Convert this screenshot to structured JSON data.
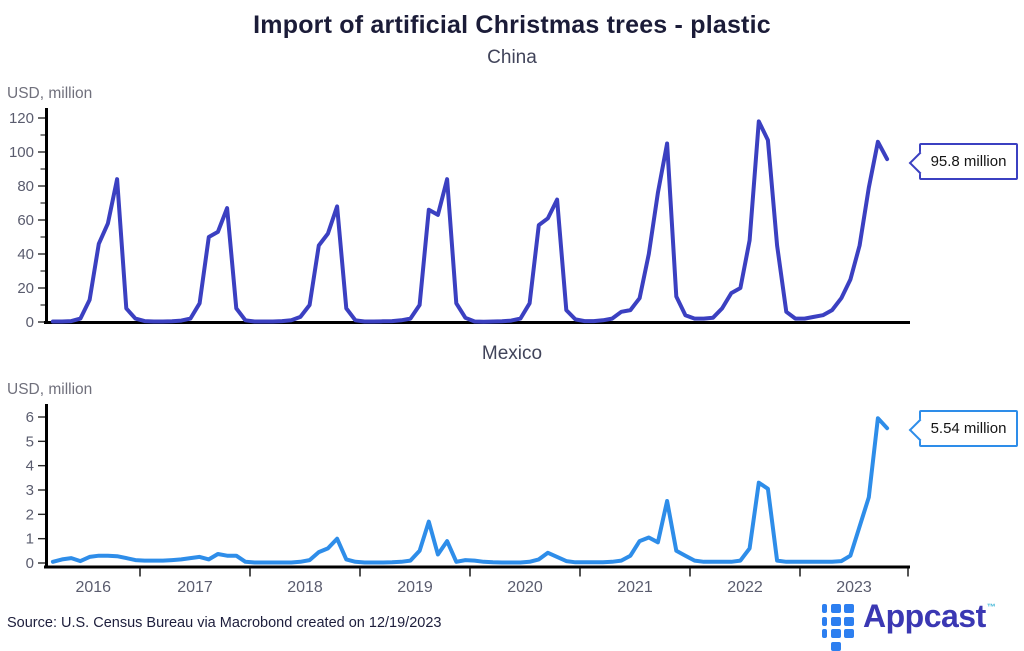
{
  "header": {
    "title": "Import of artificial Christmas trees - plastic"
  },
  "footer": {
    "source": "Source: U.S. Census Bureau via Macrobond created on 12/19/2023"
  },
  "logo": {
    "text": "Appcast",
    "tm": "™"
  },
  "colors": {
    "axis": "#000000",
    "tick_mark": "#2a2a2a",
    "tick_label": "#5a5c6e",
    "year_label": "#5a5c6e",
    "china_line": "#3b40c1",
    "mexico_line": "#2e8de9"
  },
  "x_axis": {
    "years": [
      2016,
      2017,
      2018,
      2019,
      2020,
      2021,
      2022,
      2023
    ]
  },
  "chart_data": [
    {
      "type": "line",
      "title": "China",
      "ylabel": "USD, million",
      "ylim": [
        0,
        120
      ],
      "y_ticks": [
        0,
        20,
        40,
        60,
        80,
        100,
        120
      ],
      "y_minor_tick_step": 10,
      "grid": false,
      "end_label": "95.8 million",
      "line_color": "#3b40c1",
      "series": [
        {
          "name": "China imports, USD million",
          "start": "2016-03",
          "frequency": "monthly",
          "values": [
            0.3,
            0.3,
            0.5,
            2,
            13,
            46,
            58,
            84,
            8,
            2,
            0.5,
            0.3,
            0.3,
            0.4,
            0.8,
            2,
            11,
            50,
            53,
            67,
            8,
            1,
            0.3,
            0.3,
            0.3,
            0.5,
            1,
            3,
            10,
            45,
            52,
            68,
            8,
            1,
            0.3,
            0.3,
            0.4,
            0.5,
            1,
            2,
            10,
            66,
            63,
            84,
            11,
            2.5,
            0.3,
            0.2,
            0.3,
            0.4,
            0.8,
            2,
            11,
            57,
            61,
            72,
            7,
            1.5,
            0.5,
            0.5,
            1,
            2,
            6,
            7,
            14,
            40,
            76,
            105,
            15,
            4,
            2,
            2,
            2.5,
            8,
            17,
            20,
            48,
            118,
            107,
            45,
            6,
            2,
            2,
            3,
            4,
            7,
            14,
            25,
            45,
            79,
            106,
            95.8
          ]
        }
      ]
    },
    {
      "type": "line",
      "title": "Mexico",
      "ylabel": "USD, million",
      "ylim": [
        0,
        6
      ],
      "y_ticks": [
        0,
        1,
        2,
        3,
        4,
        5,
        6
      ],
      "y_minor_tick_step": null,
      "grid": false,
      "end_label": "5.54 million",
      "line_color": "#2e8de9",
      "series": [
        {
          "name": "Mexico imports, USD million",
          "start": "2016-03",
          "frequency": "monthly",
          "values": [
            0.05,
            0.15,
            0.2,
            0.08,
            0.25,
            0.3,
            0.3,
            0.28,
            0.2,
            0.12,
            0.1,
            0.1,
            0.1,
            0.12,
            0.15,
            0.2,
            0.25,
            0.15,
            0.37,
            0.3,
            0.3,
            0.05,
            0.02,
            0.02,
            0.02,
            0.02,
            0.02,
            0.05,
            0.12,
            0.45,
            0.6,
            1.0,
            0.15,
            0.05,
            0.02,
            0.02,
            0.02,
            0.03,
            0.05,
            0.1,
            0.5,
            1.7,
            0.35,
            0.9,
            0.05,
            0.12,
            0.1,
            0.05,
            0.03,
            0.02,
            0.02,
            0.02,
            0.05,
            0.15,
            0.42,
            0.25,
            0.08,
            0.03,
            0.03,
            0.03,
            0.03,
            0.05,
            0.1,
            0.3,
            0.9,
            1.05,
            0.85,
            2.55,
            0.5,
            0.3,
            0.1,
            0.05,
            0.05,
            0.05,
            0.05,
            0.1,
            0.6,
            3.3,
            3.05,
            0.1,
            0.05,
            0.05,
            0.05,
            0.05,
            0.05,
            0.05,
            0.08,
            0.3,
            1.5,
            2.7,
            5.95,
            5.54
          ]
        }
      ]
    }
  ]
}
